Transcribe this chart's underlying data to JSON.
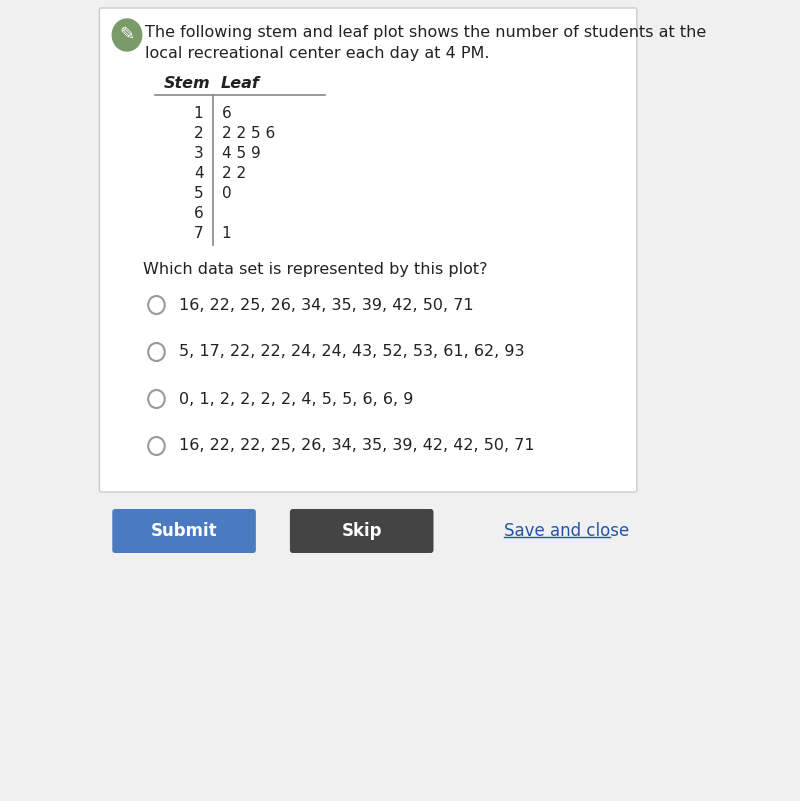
{
  "title_line1": "The following stem and leaf plot shows the number of students at the",
  "title_line2": "local recreational center each day at 4 PM.",
  "stem_header": "Stem",
  "leaf_header": "Leaf",
  "stem_leaves": [
    {
      "stem": "1",
      "leaf": "6"
    },
    {
      "stem": "2",
      "leaf": "2 2 5 6"
    },
    {
      "stem": "3",
      "leaf": "4 5 9"
    },
    {
      "stem": "4",
      "leaf": "2 2"
    },
    {
      "stem": "5",
      "leaf": "0"
    },
    {
      "stem": "6",
      "leaf": ""
    },
    {
      "stem": "7",
      "leaf": "1"
    }
  ],
  "question": "Which data set is represented by this plot?",
  "options": [
    "16, 22, 25, 26, 34, 35, 39, 42, 50, 71",
    "5, 17, 22, 22, 24, 24, 43, 52, 53, 61, 62, 93",
    "0, 1, 2, 2, 2, 2, 4, 5, 5, 6, 6, 9",
    "16, 22, 22, 25, 26, 34, 35, 39, 42, 42, 50, 71"
  ],
  "card_bg": "#ffffff",
  "card_border": "#cccccc",
  "icon_color": "#7a9a6a",
  "text_color": "#222222",
  "submit_btn_color": "#4a7abf",
  "skip_btn_color": "#444444",
  "save_close_color": "#2255aa",
  "outer_bg": "#f0f0f0"
}
